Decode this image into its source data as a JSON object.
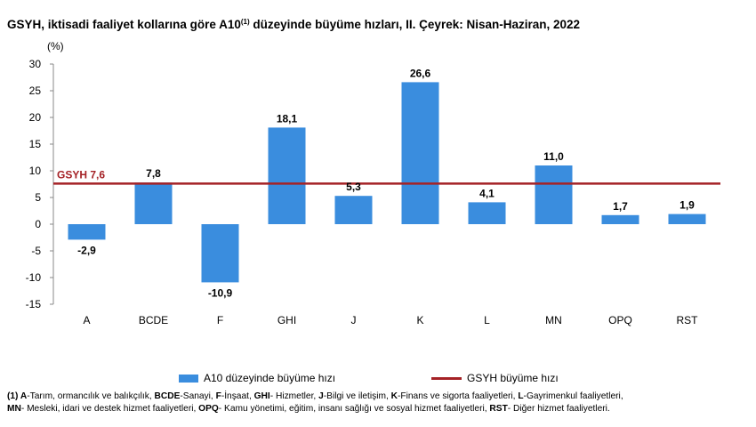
{
  "title_main": "GSYH, iktisadi faaliyet kollarına göre A10",
  "title_sup": "(1)",
  "title_rest": " düzeyinde büyüme hızları, II. Çeyrek: Nisan-Haziran, 2022",
  "colors": {
    "bar": "#3A8DDE",
    "line": "#A52226",
    "gsyh_label": "#A52226",
    "axis": "#000000"
  },
  "chart_data": {
    "type": "bar",
    "unit_label": "(%)",
    "categories": [
      "A",
      "BCDE",
      "F",
      "GHI",
      "J",
      "K",
      "L",
      "MN",
      "OPQ",
      "RST"
    ],
    "values": [
      -2.9,
      7.8,
      -10.9,
      18.1,
      5.3,
      26.6,
      4.1,
      11.0,
      1.7,
      1.9
    ],
    "value_labels": [
      "-2,9",
      "7,8",
      "-10,9",
      "18,1",
      "5,3",
      "26,6",
      "4,1",
      "11,0",
      "1,7",
      "1,9"
    ],
    "ylim": [
      -15,
      30
    ],
    "yticks": [
      30,
      25,
      20,
      15,
      10,
      5,
      0,
      -5,
      -10,
      -15
    ],
    "reference_line": {
      "value": 7.6,
      "label": "GSYH  7,6"
    },
    "legend": {
      "bar_label": "A10 düzeyinde büyüme hızı",
      "line_label": "GSYH büyüme hızı"
    }
  },
  "footnote": [
    {
      "t": "(1) A",
      "b": true
    },
    {
      "t": "-Tarım, ormancılık ve balıkçılık, ",
      "b": false
    },
    {
      "t": "BCDE",
      "b": true
    },
    {
      "t": "-Sanayi, ",
      "b": false
    },
    {
      "t": "F",
      "b": true
    },
    {
      "t": "-İnşaat, ",
      "b": false
    },
    {
      "t": "GHI",
      "b": true
    },
    {
      "t": "- Hizmetler, ",
      "b": false
    },
    {
      "t": "J",
      "b": true
    },
    {
      "t": "-Bilgi ve iletişim, ",
      "b": false
    },
    {
      "t": "K",
      "b": true
    },
    {
      "t": "-Finans ve sigorta faaliyetleri, ",
      "b": false
    },
    {
      "t": "L",
      "b": true
    },
    {
      "t": "-Gayrimenkul faaliyetleri,",
      "b": false
    },
    {
      "t": "MN",
      "b": true,
      "br": true
    },
    {
      "t": "- Mesleki, idari ve destek hizmet faaliyetleri, ",
      "b": false
    },
    {
      "t": "OPQ",
      "b": true
    },
    {
      "t": "- Kamu yönetimi, eğitim, insanı sağlığı ve sosyal hizmet faaliyetleri, ",
      "b": false
    },
    {
      "t": "RST",
      "b": true
    },
    {
      "t": "- Diğer hizmet faaliyetleri.",
      "b": false
    }
  ]
}
